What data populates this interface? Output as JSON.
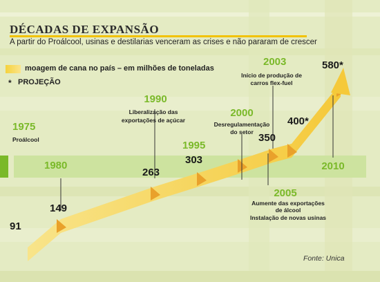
{
  "header": {
    "title": "DÉCADAS DE EXPANSÃO",
    "subtitle": "A partir do Proálcool, usinas e destilarias venceram as crises e não pararam de crescer"
  },
  "legend": {
    "series_label": "moagem de cana no país – em milhões de toneladas",
    "projection_marker": "*",
    "projection_label": "PROJEÇÃO"
  },
  "source": "Fonte: Unica",
  "colors": {
    "year_green": "#7ab929",
    "ribbon_yellow": "#f5c93a",
    "ribbon_orange": "#e9a12b",
    "band_green": "#cde39f",
    "title_rule": "#f2c200"
  },
  "chart_data": {
    "type": "line",
    "title": "DÉCADAS DE EXPANSÃO",
    "subtitle": "A partir do Proálcool, usinas e destilarias venceram as crises e não pararam de crescer",
    "series": [
      {
        "name": "moagem de cana no país – em milhões de toneladas",
        "points": [
          {
            "x": 1975,
            "y": 91,
            "label": "91"
          },
          {
            "x": 1980,
            "y": 149,
            "label": "149"
          },
          {
            "x": 1990,
            "y": 263,
            "label": "263"
          },
          {
            "x": 1995,
            "y": 303,
            "label": "303"
          },
          {
            "x": 2000,
            "y": 350,
            "label": "350"
          },
          {
            "x": 2003,
            "y": 350,
            "label": ""
          },
          {
            "x": 2005,
            "y": 400,
            "label": "400*",
            "projection": true
          },
          {
            "x": 2010,
            "y": 580,
            "label": "580*",
            "projection": true
          }
        ]
      }
    ],
    "timeline": [
      {
        "year": "1975",
        "event": "Proálcool"
      },
      {
        "year": "1980",
        "event": ""
      },
      {
        "year": "1990",
        "event": "Liberalização das exportações de açúcar"
      },
      {
        "year": "1995",
        "event": ""
      },
      {
        "year": "2000",
        "event": "Desregulamentação do setor"
      },
      {
        "year": "2003",
        "event": "Início de produção de carros flex-fuel"
      },
      {
        "year": "2005",
        "event": "Aumente das exportações de álcool Instalação de novas usinas"
      },
      {
        "year": "2010",
        "event": ""
      }
    ]
  }
}
